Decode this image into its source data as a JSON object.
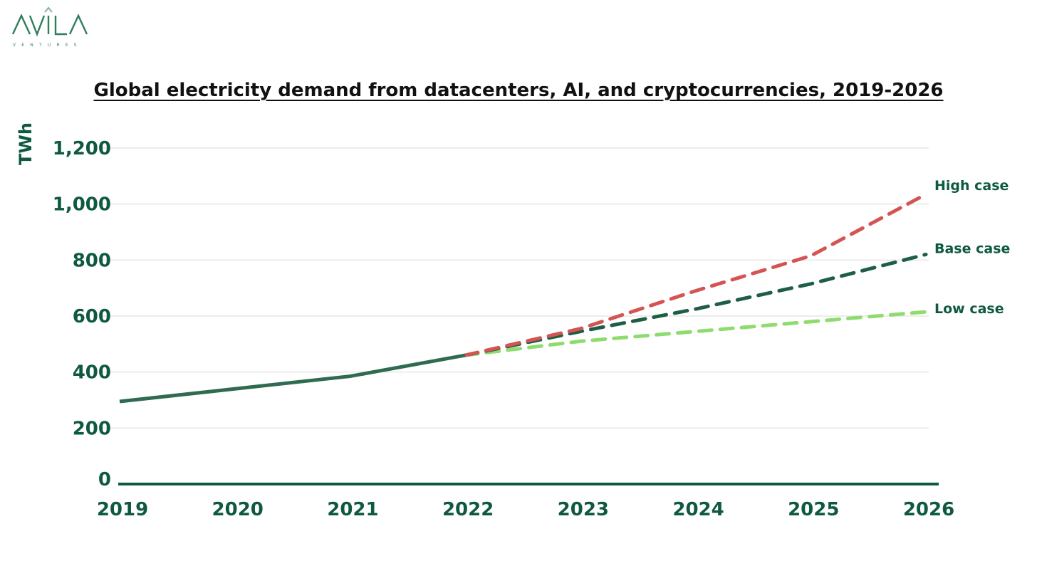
{
  "brand": {
    "name": "AVILA",
    "subtitle": "VENTURES",
    "color": "#2e7d5b",
    "accent": "#7fb89a"
  },
  "chart_data": {
    "type": "line",
    "title": "Global electricity demand from datacenters, AI, and cryptocurrencies, 2019-2026",
    "ylabel": "TWh",
    "xlabel": "",
    "x": [
      2019,
      2020,
      2021,
      2022,
      2023,
      2024,
      2025,
      2026
    ],
    "x_labels": [
      "2019",
      "2020",
      "2021",
      "2022",
      "2023",
      "2024",
      "2025",
      "2026"
    ],
    "ylim": [
      0,
      1200
    ],
    "y_ticks": [
      0,
      200,
      400,
      600,
      800,
      1000,
      1200
    ],
    "y_tick_labels": [
      "0",
      "200",
      "400",
      "600",
      "800",
      "1,000",
      "1,200"
    ],
    "grid": true,
    "historical": {
      "x": [
        2019,
        2020,
        2021,
        2022
      ],
      "values": [
        295,
        340,
        385,
        460
      ],
      "color": "#2f6b50"
    },
    "series": [
      {
        "name": "High case",
        "x": [
          2022,
          2023,
          2024,
          2025,
          2026
        ],
        "values": [
          460,
          555,
          690,
          815,
          1035
        ],
        "color": "#d45454",
        "style": "dashed"
      },
      {
        "name": "Base case",
        "x": [
          2022,
          2023,
          2024,
          2025,
          2026
        ],
        "values": [
          460,
          545,
          625,
          715,
          820
        ],
        "color": "#1f5e46",
        "style": "dashed"
      },
      {
        "name": "Low case",
        "x": [
          2022,
          2023,
          2024,
          2025,
          2026
        ],
        "values": [
          460,
          510,
          545,
          580,
          615
        ],
        "color": "#8fdc6e",
        "style": "dashed"
      }
    ]
  }
}
